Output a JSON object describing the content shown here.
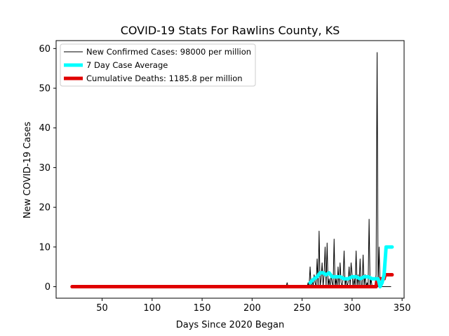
{
  "chart_data": {
    "type": "line",
    "title": "COVID-19 Stats For Rawlins County, KS",
    "xlabel": "Days Since 2020 Began",
    "ylabel": "New COVID-19 Cases",
    "xlim": [
      4,
      352
    ],
    "ylim": [
      -2.9,
      62
    ],
    "xticks": [
      50,
      100,
      150,
      200,
      250,
      300,
      350
    ],
    "yticks": [
      0,
      10,
      20,
      30,
      40,
      50,
      60
    ],
    "grid": false,
    "legend_position": "top-left",
    "colors": {
      "cases": "#000000",
      "average": "#00ffff",
      "deaths": "#e00000"
    },
    "series": [
      {
        "name": "New Confirmed Cases: 98000 per million",
        "style": "line",
        "x": [
          20,
          234,
          235,
          236,
          255,
          256,
          257,
          258,
          259,
          260,
          261,
          262,
          263,
          264,
          265,
          266,
          267,
          268,
          269,
          270,
          271,
          272,
          273,
          274,
          275,
          276,
          277,
          278,
          279,
          280,
          281,
          282,
          283,
          284,
          285,
          286,
          287,
          288,
          289,
          290,
          291,
          292,
          293,
          294,
          295,
          296,
          297,
          298,
          299,
          300,
          301,
          302,
          303,
          304,
          305,
          306,
          307,
          308,
          309,
          310,
          311,
          312,
          313,
          314,
          315,
          316,
          317,
          318,
          319,
          320,
          321,
          322,
          323,
          324,
          325,
          326,
          327,
          328,
          329,
          330,
          331,
          332,
          333,
          334,
          335,
          336,
          337,
          338,
          339
        ],
        "y": [
          0,
          0,
          1,
          0,
          0,
          1,
          0,
          5,
          0,
          2,
          0,
          3,
          1,
          0,
          7,
          0,
          14,
          0,
          2,
          6,
          0,
          3,
          10,
          0,
          11,
          0,
          2,
          0,
          3,
          1,
          0,
          12,
          0,
          2,
          0,
          5,
          0,
          6,
          1,
          0,
          2,
          9,
          0,
          2,
          0,
          1,
          5,
          0,
          6,
          3,
          0,
          2,
          0,
          9,
          0,
          3,
          0,
          7,
          0,
          0,
          8,
          0,
          3,
          0,
          1,
          0,
          17,
          0,
          2,
          0,
          0,
          0,
          0,
          3,
          59,
          0,
          10,
          0,
          0,
          0,
          0,
          0,
          0,
          0,
          0,
          0,
          0,
          0,
          0
        ]
      },
      {
        "name": "7 Day Case Average",
        "style": "line",
        "x": [
          258,
          262,
          265,
          268,
          271,
          274,
          277,
          280,
          284,
          288,
          292,
          296,
          300,
          304,
          308,
          312,
          316,
          320,
          324,
          326,
          328,
          330,
          332,
          334,
          336,
          338,
          340
        ],
        "y": [
          1,
          2,
          2.5,
          3.5,
          3.5,
          3,
          3.5,
          2.5,
          2.5,
          2.5,
          2,
          2,
          2.5,
          2.5,
          2,
          2.5,
          2.5,
          2,
          2,
          2,
          0,
          1,
          3,
          10,
          10,
          10,
          10
        ]
      },
      {
        "name": "Cumulative Deaths: 1185.8 per million",
        "style": "line",
        "x": [
          20,
          324,
          325,
          328,
          329,
          332,
          333,
          336,
          340
        ],
        "y": [
          0,
          0,
          2,
          2,
          2,
          2,
          3,
          3,
          3
        ]
      }
    ]
  }
}
